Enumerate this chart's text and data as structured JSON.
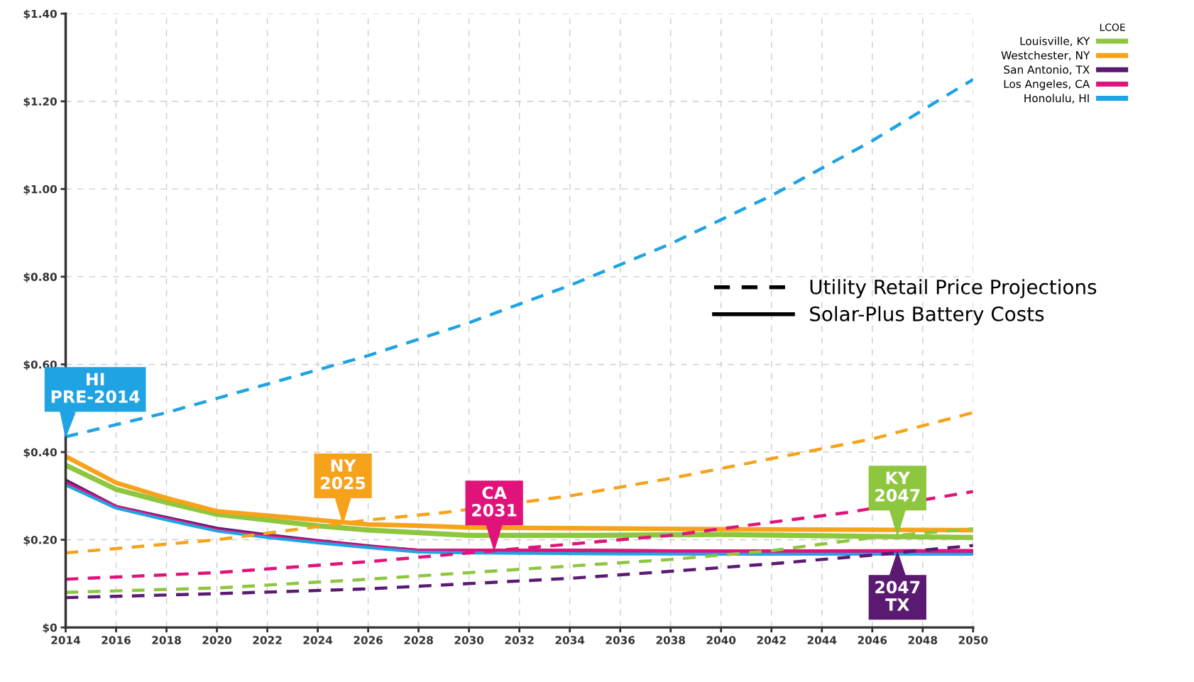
{
  "chart_data": {
    "type": "line",
    "legend_title": "LCOE",
    "legend": "top right",
    "grid": true,
    "marker": "none",
    "xlim": [
      2014,
      2050
    ],
    "xticks": [
      2014,
      2016,
      2018,
      2020,
      2022,
      2024,
      2026,
      2028,
      2030,
      2032,
      2034,
      2036,
      2038,
      2040,
      2042,
      2044,
      2046,
      2048,
      2050
    ],
    "ylim": [
      0,
      1.4
    ],
    "yticks": [
      {
        "value": 0,
        "label": "$0"
      },
      {
        "value": 0.2,
        "label": "$0.20"
      },
      {
        "value": 0.4,
        "label": "$0.40"
      },
      {
        "value": 0.6,
        "label": "$0.60"
      },
      {
        "value": 0.8,
        "label": "$0.80"
      },
      {
        "value": 1.0,
        "label": "$1.00"
      },
      {
        "value": 1.2,
        "label": "$1.20"
      },
      {
        "value": 1.4,
        "label": "$1.40"
      }
    ],
    "series": [
      {
        "name": "Louisville, KY",
        "color": "#8dc63f",
        "line_style": "solid",
        "x": [
          2014,
          2016,
          2018,
          2020,
          2022,
          2024,
          2026,
          2028,
          2030,
          2035,
          2040,
          2050
        ],
        "values": [
          0.37,
          0.315,
          0.285,
          0.258,
          0.245,
          0.232,
          0.222,
          0.216,
          0.21,
          0.21,
          0.212,
          0.205
        ]
      },
      {
        "name": "Westchester, NY",
        "color": "#f7a21b",
        "line_style": "solid",
        "x": [
          2014,
          2016,
          2018,
          2020,
          2022,
          2024,
          2026,
          2028,
          2030,
          2035,
          2040,
          2050
        ],
        "values": [
          0.39,
          0.33,
          0.295,
          0.265,
          0.255,
          0.245,
          0.235,
          0.232,
          0.228,
          0.226,
          0.224,
          0.222
        ]
      },
      {
        "name": "San Antonio, TX",
        "color": "#5b1a72",
        "line_style": "solid",
        "x": [
          2014,
          2016,
          2018,
          2020,
          2022,
          2024,
          2026,
          2028,
          2030,
          2035,
          2040,
          2050
        ],
        "values": [
          0.335,
          0.275,
          0.25,
          0.225,
          0.21,
          0.197,
          0.185,
          0.175,
          0.175,
          0.175,
          0.173,
          0.172
        ]
      },
      {
        "name": "Los Angeles, CA",
        "color": "#e0137a",
        "line_style": "solid",
        "x": [
          2014,
          2016,
          2018,
          2020,
          2022,
          2024,
          2026,
          2028,
          2030,
          2035,
          2040,
          2050
        ],
        "values": [
          0.33,
          0.275,
          0.248,
          0.222,
          0.208,
          0.196,
          0.184,
          0.176,
          0.176,
          0.175,
          0.174,
          0.175
        ]
      },
      {
        "name": "Honolulu, HI",
        "color": "#1fa3e3",
        "line_style": "solid",
        "x": [
          2014,
          2016,
          2018,
          2020,
          2022,
          2024,
          2026,
          2028,
          2030,
          2035,
          2040,
          2050
        ],
        "values": [
          0.325,
          0.272,
          0.245,
          0.22,
          0.205,
          0.193,
          0.182,
          0.172,
          0.17,
          0.168,
          0.167,
          0.167
        ]
      },
      {
        "color": "#8dc63f",
        "line_style": "dashed",
        "x": [
          2014,
          2020,
          2026,
          2030,
          2034,
          2038,
          2042,
          2046,
          2050
        ],
        "values": [
          0.08,
          0.09,
          0.11,
          0.125,
          0.14,
          0.155,
          0.175,
          0.205,
          0.225
        ]
      },
      {
        "color": "#f7a21b",
        "line_style": "dashed",
        "x": [
          2014,
          2020,
          2026,
          2029,
          2034,
          2038,
          2042,
          2046,
          2050
        ],
        "values": [
          0.17,
          0.2,
          0.245,
          0.262,
          0.3,
          0.34,
          0.385,
          0.43,
          0.49
        ]
      },
      {
        "color": "#5b1a72",
        "line_style": "dashed",
        "x": [
          2014,
          2020,
          2026,
          2030,
          2034,
          2038,
          2042,
          2046,
          2050
        ],
        "values": [
          0.068,
          0.077,
          0.088,
          0.1,
          0.112,
          0.128,
          0.145,
          0.165,
          0.187
        ]
      },
      {
        "color": "#e0137a",
        "line_style": "dashed",
        "x": [
          2014,
          2020,
          2026,
          2030,
          2034,
          2038,
          2042,
          2045,
          2050
        ],
        "values": [
          0.11,
          0.125,
          0.15,
          0.17,
          0.19,
          0.21,
          0.24,
          0.262,
          0.31
        ]
      },
      {
        "color": "#1fa3e3",
        "line_style": "dashed",
        "x": [
          2014,
          2018,
          2022,
          2026,
          2030,
          2034,
          2038,
          2042,
          2046,
          2050
        ],
        "values": [
          0.435,
          0.49,
          0.555,
          0.62,
          0.695,
          0.78,
          0.875,
          0.985,
          1.11,
          1.25
        ]
      }
    ],
    "annotations": [
      "Utility Retail Price Projections",
      "Solar-Plus Battery Costs",
      {
        "text": "HI\nPRE-2014",
        "x": 2014,
        "y": 0.435
      },
      {
        "text": "NY\n2025",
        "x": 2025,
        "y": 0.238
      },
      {
        "text": "CA\n2031",
        "x": 2031,
        "y": 0.176
      },
      {
        "text": "KY\n2047",
        "x": 2047,
        "y": 0.21
      },
      {
        "text": "2047\nTX",
        "x": 2047,
        "y": 0.172
      }
    ]
  }
}
